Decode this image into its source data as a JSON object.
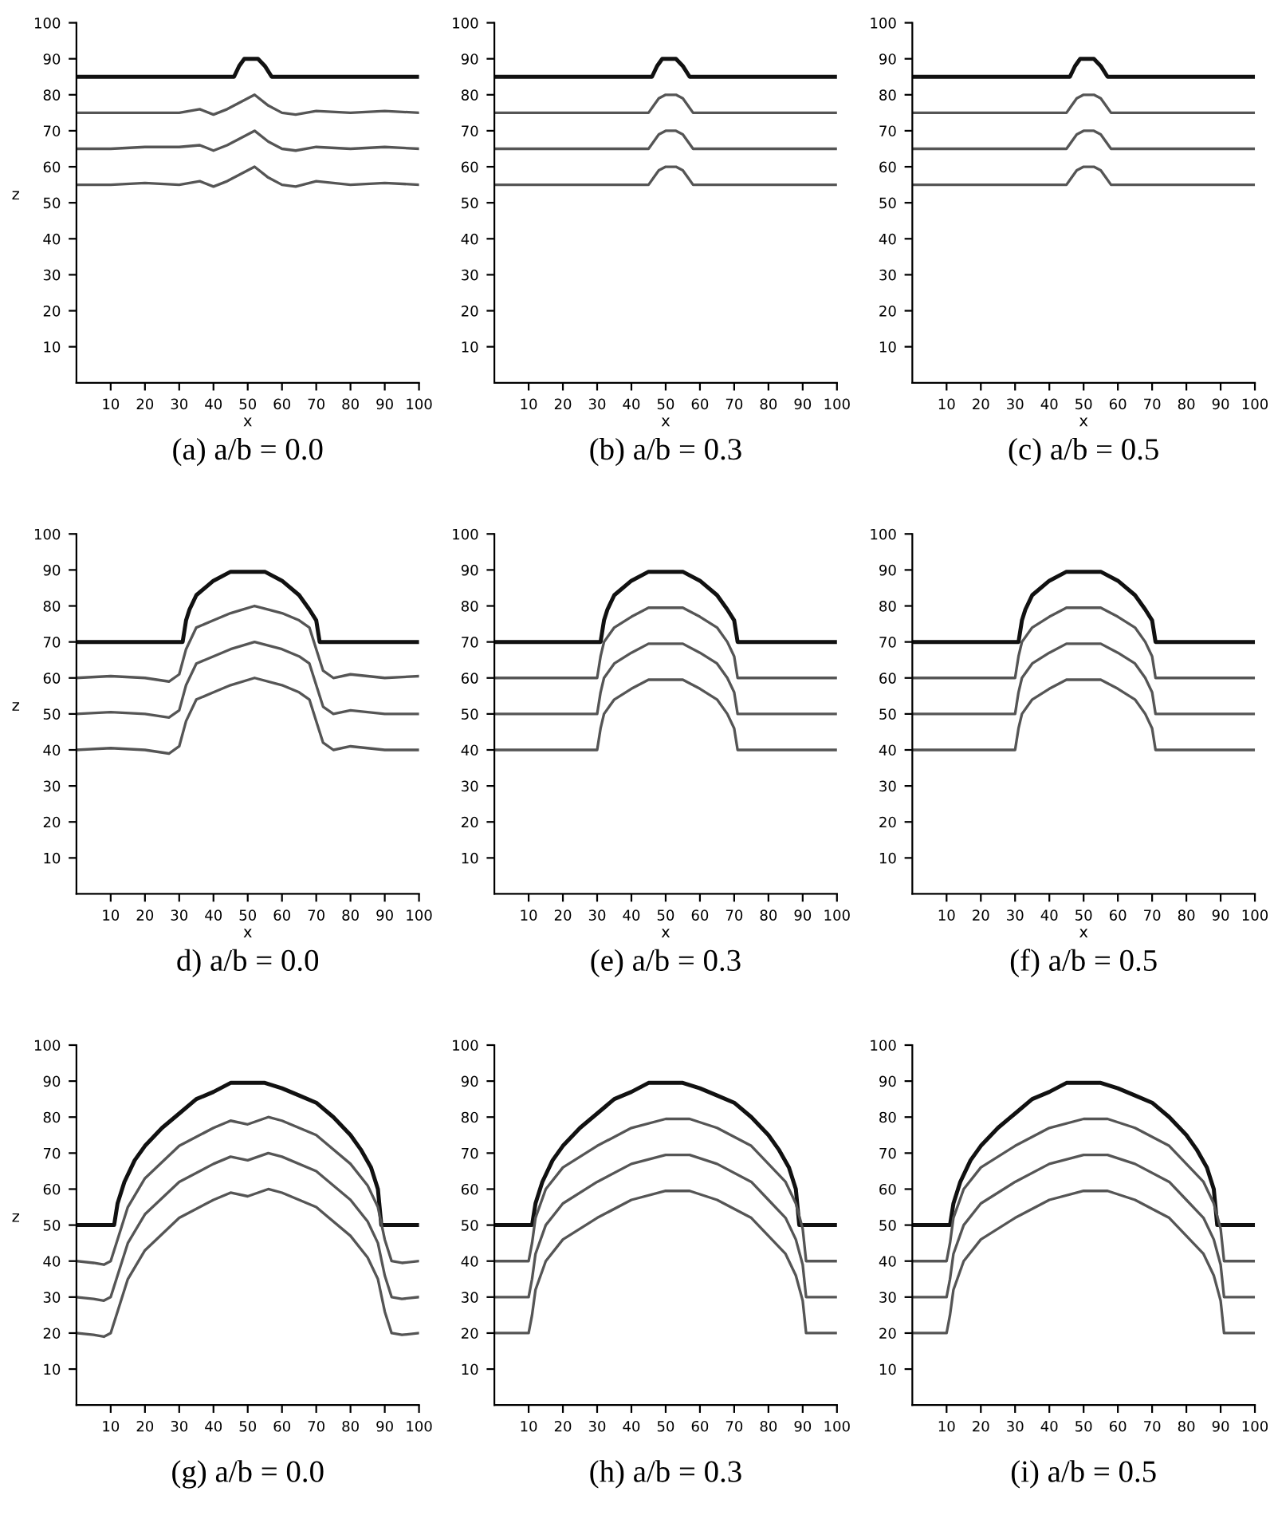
{
  "chart_data": [
    {
      "type": "line",
      "title": "(a) a/b = 0.0",
      "xlabel": "x",
      "ylabel": "z",
      "xlim": [
        0,
        100
      ],
      "ylim": [
        0,
        100
      ],
      "xticks": [
        10,
        20,
        30,
        40,
        50,
        60,
        70,
        80,
        90,
        100
      ],
      "yticks": [
        10,
        20,
        30,
        40,
        50,
        60,
        70,
        80,
        90,
        100
      ],
      "grid": false,
      "legend": false,
      "series": [
        {
          "color": "#111111",
          "x": [
            0,
            46,
            47.5,
            49,
            53,
            55,
            57,
            100
          ],
          "values": [
            85,
            85,
            88,
            90,
            90,
            88,
            85,
            85
          ]
        },
        {
          "color": "#555555",
          "x": [
            0,
            10,
            20,
            30,
            36,
            40,
            44,
            50,
            52,
            56,
            60,
            64,
            70,
            80,
            90,
            100
          ],
          "values": [
            75,
            75,
            75,
            75,
            76,
            74.5,
            76,
            79,
            80,
            77,
            75,
            74.5,
            75.5,
            75,
            75.5,
            75
          ]
        },
        {
          "color": "#555555",
          "x": [
            0,
            10,
            20,
            30,
            36,
            40,
            44,
            50,
            52,
            56,
            60,
            64,
            70,
            80,
            90,
            100
          ],
          "values": [
            65,
            65,
            65.5,
            65.5,
            66,
            64.5,
            66,
            69,
            70,
            67,
            65,
            64.5,
            65.5,
            65,
            65.5,
            65
          ]
        },
        {
          "color": "#555555",
          "x": [
            0,
            10,
            20,
            30,
            36,
            40,
            44,
            50,
            52,
            56,
            60,
            64,
            70,
            80,
            90,
            100
          ],
          "values": [
            55,
            55,
            55.5,
            55,
            56,
            54.5,
            56,
            59,
            60,
            57,
            55,
            54.5,
            56,
            55,
            55.5,
            55
          ]
        }
      ]
    },
    {
      "type": "line",
      "title": "(b) a/b = 0.3",
      "xlabel": "x",
      "xlim": [
        0,
        100
      ],
      "ylim": [
        0,
        100
      ],
      "xticks": [
        10,
        20,
        30,
        40,
        50,
        60,
        70,
        80,
        90,
        100
      ],
      "yticks": [
        10,
        20,
        30,
        40,
        50,
        60,
        70,
        80,
        90,
        100
      ],
      "grid": false,
      "legend": false,
      "series": [
        {
          "color": "#111111",
          "x": [
            0,
            46,
            47.5,
            49,
            53,
            55,
            57,
            100
          ],
          "values": [
            85,
            85,
            88,
            90,
            90,
            88,
            85,
            85
          ]
        },
        {
          "color": "#555555",
          "x": [
            0,
            45,
            46.5,
            48,
            50,
            53,
            55,
            56.5,
            58,
            100
          ],
          "values": [
            75,
            75,
            77,
            79,
            80,
            80,
            79,
            77,
            75,
            75
          ]
        },
        {
          "color": "#555555",
          "x": [
            0,
            45,
            46.5,
            48,
            50,
            53,
            55,
            56.5,
            58,
            100
          ],
          "values": [
            65,
            65,
            67,
            69,
            70,
            70,
            69,
            67,
            65,
            65
          ]
        },
        {
          "color": "#555555",
          "x": [
            0,
            45,
            46.5,
            48,
            50,
            53,
            55,
            56.5,
            58,
            100
          ],
          "values": [
            55,
            55,
            57,
            59,
            60,
            60,
            59,
            57,
            55,
            55
          ]
        }
      ]
    },
    {
      "type": "line",
      "title": "(c) a/b = 0.5",
      "xlabel": "x",
      "xlim": [
        0,
        100
      ],
      "ylim": [
        0,
        100
      ],
      "xticks": [
        10,
        20,
        30,
        40,
        50,
        60,
        70,
        80,
        90,
        100
      ],
      "yticks": [
        10,
        20,
        30,
        40,
        50,
        60,
        70,
        80,
        90,
        100
      ],
      "grid": false,
      "legend": false,
      "series": [
        {
          "color": "#111111",
          "x": [
            0,
            46,
            47.5,
            49,
            53,
            55,
            57,
            100
          ],
          "values": [
            85,
            85,
            88,
            90,
            90,
            88,
            85,
            85
          ]
        },
        {
          "color": "#555555",
          "x": [
            0,
            45,
            46.5,
            48,
            50,
            53,
            55,
            56.5,
            58,
            100
          ],
          "values": [
            75,
            75,
            77,
            79,
            80,
            80,
            79,
            77,
            75,
            75
          ]
        },
        {
          "color": "#555555",
          "x": [
            0,
            45,
            46.5,
            48,
            50,
            53,
            55,
            56.5,
            58,
            100
          ],
          "values": [
            65,
            65,
            67,
            69,
            70,
            70,
            69,
            67,
            65,
            65
          ]
        },
        {
          "color": "#555555",
          "x": [
            0,
            45,
            46.5,
            48,
            50,
            53,
            55,
            56.5,
            58,
            100
          ],
          "values": [
            55,
            55,
            57,
            59,
            60,
            60,
            59,
            57,
            55,
            55
          ]
        }
      ]
    },
    {
      "type": "line",
      "title": "d) a/b = 0.0",
      "xlabel": "x",
      "ylabel": "z",
      "xlim": [
        0,
        100
      ],
      "ylim": [
        0,
        100
      ],
      "xticks": [
        10,
        20,
        30,
        40,
        50,
        60,
        70,
        80,
        90,
        100
      ],
      "yticks": [
        10,
        20,
        30,
        40,
        50,
        60,
        70,
        80,
        90,
        100
      ],
      "grid": false,
      "legend": false,
      "series": [
        {
          "color": "#111111",
          "x": [
            0,
            31,
            32,
            33,
            35,
            40,
            45,
            55,
            60,
            65,
            68,
            70,
            71,
            100
          ],
          "values": [
            70,
            70,
            76,
            79,
            83,
            87,
            89.5,
            89.5,
            87,
            83,
            79,
            76,
            70,
            70
          ]
        },
        {
          "color": "#555555",
          "x": [
            0,
            10,
            20,
            27,
            30,
            32,
            35,
            40,
            45,
            52,
            60,
            65,
            68,
            70,
            72,
            75,
            80,
            90,
            100
          ],
          "values": [
            60,
            60.5,
            60,
            59,
            61,
            68,
            74,
            76,
            78,
            80,
            78,
            76,
            74,
            68,
            62,
            60,
            61,
            60,
            60.5
          ]
        },
        {
          "color": "#555555",
          "x": [
            0,
            10,
            20,
            27,
            30,
            32,
            35,
            40,
            45,
            52,
            60,
            65,
            68,
            70,
            72,
            75,
            80,
            90,
            100
          ],
          "values": [
            50,
            50.5,
            50,
            49,
            51,
            58,
            64,
            66,
            68,
            70,
            68,
            66,
            64,
            58,
            52,
            50,
            51,
            50,
            50
          ]
        },
        {
          "color": "#555555",
          "x": [
            0,
            10,
            20,
            27,
            30,
            32,
            35,
            40,
            45,
            52,
            60,
            65,
            68,
            70,
            72,
            75,
            80,
            90,
            100
          ],
          "values": [
            40,
            40.5,
            40,
            39,
            41,
            48,
            54,
            56,
            58,
            60,
            58,
            56,
            54,
            48,
            42,
            40,
            41,
            40,
            40
          ]
        }
      ]
    },
    {
      "type": "line",
      "title": "(e) a/b = 0.3",
      "xlabel": "x",
      "xlim": [
        0,
        100
      ],
      "ylim": [
        0,
        100
      ],
      "xticks": [
        10,
        20,
        30,
        40,
        50,
        60,
        70,
        80,
        90,
        100
      ],
      "yticks": [
        10,
        20,
        30,
        40,
        50,
        60,
        70,
        80,
        90,
        100
      ],
      "grid": false,
      "legend": false,
      "series": [
        {
          "color": "#111111",
          "x": [
            0,
            31,
            32,
            33,
            35,
            40,
            45,
            55,
            60,
            65,
            68,
            70,
            71,
            100
          ],
          "values": [
            70,
            70,
            76,
            79,
            83,
            87,
            89.5,
            89.5,
            87,
            83,
            79,
            76,
            70,
            70
          ]
        },
        {
          "color": "#555555",
          "x": [
            0,
            30,
            31,
            32,
            35,
            40,
            45,
            55,
            60,
            65,
            68,
            70,
            71,
            100
          ],
          "values": [
            60,
            60,
            66,
            70,
            74,
            77,
            79.5,
            79.5,
            77,
            74,
            70,
            66,
            60,
            60
          ]
        },
        {
          "color": "#555555",
          "x": [
            0,
            30,
            31,
            32,
            35,
            40,
            45,
            55,
            60,
            65,
            68,
            70,
            71,
            100
          ],
          "values": [
            50,
            50,
            56,
            60,
            64,
            67,
            69.5,
            69.5,
            67,
            64,
            60,
            56,
            50,
            50
          ]
        },
        {
          "color": "#555555",
          "x": [
            0,
            30,
            31,
            32,
            35,
            40,
            45,
            55,
            60,
            65,
            68,
            70,
            71,
            100
          ],
          "values": [
            40,
            40,
            46,
            50,
            54,
            57,
            59.5,
            59.5,
            57,
            54,
            50,
            46,
            40,
            40
          ]
        }
      ]
    },
    {
      "type": "line",
      "title": "(f) a/b = 0.5",
      "xlabel": "x",
      "xlim": [
        0,
        100
      ],
      "ylim": [
        0,
        100
      ],
      "xticks": [
        10,
        20,
        30,
        40,
        50,
        60,
        70,
        80,
        90,
        100
      ],
      "yticks": [
        10,
        20,
        30,
        40,
        50,
        60,
        70,
        80,
        90,
        100
      ],
      "grid": false,
      "legend": false,
      "series": [
        {
          "color": "#111111",
          "x": [
            0,
            31,
            32,
            33,
            35,
            40,
            45,
            55,
            60,
            65,
            68,
            70,
            71,
            100
          ],
          "values": [
            70,
            70,
            76,
            79,
            83,
            87,
            89.5,
            89.5,
            87,
            83,
            79,
            76,
            70,
            70
          ]
        },
        {
          "color": "#555555",
          "x": [
            0,
            30,
            31,
            32,
            35,
            40,
            45,
            55,
            60,
            65,
            68,
            70,
            71,
            100
          ],
          "values": [
            60,
            60,
            66,
            70,
            74,
            77,
            79.5,
            79.5,
            77,
            74,
            70,
            66,
            60,
            60
          ]
        },
        {
          "color": "#555555",
          "x": [
            0,
            30,
            31,
            32,
            35,
            40,
            45,
            55,
            60,
            65,
            68,
            70,
            71,
            100
          ],
          "values": [
            50,
            50,
            56,
            60,
            64,
            67,
            69.5,
            69.5,
            67,
            64,
            60,
            56,
            50,
            50
          ]
        },
        {
          "color": "#555555",
          "x": [
            0,
            30,
            31,
            32,
            35,
            40,
            45,
            55,
            60,
            65,
            68,
            70,
            71,
            100
          ],
          "values": [
            40,
            40,
            46,
            50,
            54,
            57,
            59.5,
            59.5,
            57,
            54,
            50,
            46,
            40,
            40
          ]
        }
      ]
    },
    {
      "type": "line",
      "title": "(g) a/b = 0.0",
      "ylabel": "z",
      "xlim": [
        0,
        100
      ],
      "ylim": [
        0,
        100
      ],
      "xticks": [
        10,
        20,
        30,
        40,
        50,
        60,
        70,
        80,
        90,
        100
      ],
      "yticks": [
        10,
        20,
        30,
        40,
        50,
        60,
        70,
        80,
        90,
        100
      ],
      "grid": false,
      "legend": false,
      "series": [
        {
          "color": "#111111",
          "x": [
            0,
            11,
            12,
            14,
            17,
            20,
            25,
            30,
            35,
            40,
            45,
            55,
            60,
            65,
            70,
            75,
            80,
            83,
            86,
            88,
            89,
            100
          ],
          "values": [
            50,
            50,
            56,
            62,
            68,
            72,
            77,
            81,
            85,
            87,
            89.5,
            89.5,
            88,
            86,
            84,
            80,
            75,
            71,
            66,
            60,
            50,
            50
          ]
        },
        {
          "color": "#555555",
          "x": [
            0,
            5,
            8,
            10,
            12,
            15,
            20,
            30,
            40,
            45,
            50,
            56,
            60,
            70,
            80,
            85,
            88,
            90,
            92,
            95,
            100
          ],
          "values": [
            40,
            39.5,
            39,
            40,
            46,
            55,
            63,
            72,
            77,
            79,
            78,
            80,
            79,
            75,
            67,
            61,
            55,
            46,
            40,
            39.5,
            40
          ]
        },
        {
          "color": "#555555",
          "x": [
            0,
            5,
            8,
            10,
            12,
            15,
            20,
            30,
            40,
            45,
            50,
            56,
            60,
            70,
            80,
            85,
            88,
            90,
            92,
            95,
            100
          ],
          "values": [
            30,
            29.5,
            29,
            30,
            36,
            45,
            53,
            62,
            67,
            69,
            68,
            70,
            69,
            65,
            57,
            51,
            45,
            36,
            30,
            29.5,
            30
          ]
        },
        {
          "color": "#555555",
          "x": [
            0,
            5,
            8,
            10,
            12,
            15,
            20,
            30,
            40,
            45,
            50,
            56,
            60,
            70,
            80,
            85,
            88,
            90,
            92,
            95,
            100
          ],
          "values": [
            20,
            19.5,
            19,
            20,
            26,
            35,
            43,
            52,
            57,
            59,
            58,
            60,
            59,
            55,
            47,
            41,
            35,
            26,
            20,
            19.5,
            20
          ]
        }
      ]
    },
    {
      "type": "line",
      "title": "(h) a/b = 0.3",
      "xlim": [
        0,
        100
      ],
      "ylim": [
        0,
        100
      ],
      "xticks": [
        10,
        20,
        30,
        40,
        50,
        60,
        70,
        80,
        90,
        100
      ],
      "yticks": [
        10,
        20,
        30,
        40,
        50,
        60,
        70,
        80,
        90,
        100
      ],
      "grid": false,
      "legend": false,
      "series": [
        {
          "color": "#111111",
          "x": [
            0,
            11,
            12,
            14,
            17,
            20,
            25,
            30,
            35,
            40,
            45,
            55,
            60,
            65,
            70,
            75,
            80,
            83,
            86,
            88,
            89,
            100
          ],
          "values": [
            50,
            50,
            56,
            62,
            68,
            72,
            77,
            81,
            85,
            87,
            89.5,
            89.5,
            88,
            86,
            84,
            80,
            75,
            71,
            66,
            60,
            50,
            50
          ]
        },
        {
          "color": "#555555",
          "x": [
            0,
            10,
            11,
            12,
            15,
            20,
            30,
            40,
            50,
            57,
            65,
            75,
            80,
            85,
            88,
            90,
            91,
            100
          ],
          "values": [
            40,
            40,
            45,
            52,
            60,
            66,
            72,
            77,
            79.5,
            79.5,
            77,
            72,
            67,
            62,
            56,
            49,
            40,
            40
          ]
        },
        {
          "color": "#555555",
          "x": [
            0,
            10,
            11,
            12,
            15,
            20,
            30,
            40,
            50,
            57,
            65,
            75,
            80,
            85,
            88,
            90,
            91,
            100
          ],
          "values": [
            30,
            30,
            35,
            42,
            50,
            56,
            62,
            67,
            69.5,
            69.5,
            67,
            62,
            57,
            52,
            46,
            39,
            30,
            30
          ]
        },
        {
          "color": "#555555",
          "x": [
            0,
            10,
            11,
            12,
            15,
            20,
            30,
            40,
            50,
            57,
            65,
            75,
            80,
            85,
            88,
            90,
            91,
            100
          ],
          "values": [
            20,
            20,
            25,
            32,
            40,
            46,
            52,
            57,
            59.5,
            59.5,
            57,
            52,
            47,
            42,
            36,
            29,
            20,
            20
          ]
        }
      ]
    },
    {
      "type": "line",
      "title": "(i) a/b = 0.5",
      "xlim": [
        0,
        100
      ],
      "ylim": [
        0,
        100
      ],
      "xticks": [
        10,
        20,
        30,
        40,
        50,
        60,
        70,
        80,
        90,
        100
      ],
      "yticks": [
        10,
        20,
        30,
        40,
        50,
        60,
        70,
        80,
        90,
        100
      ],
      "grid": false,
      "legend": false,
      "series": [
        {
          "color": "#111111",
          "x": [
            0,
            11,
            12,
            14,
            17,
            20,
            25,
            30,
            35,
            40,
            45,
            55,
            60,
            65,
            70,
            75,
            80,
            83,
            86,
            88,
            89,
            100
          ],
          "values": [
            50,
            50,
            56,
            62,
            68,
            72,
            77,
            81,
            85,
            87,
            89.5,
            89.5,
            88,
            86,
            84,
            80,
            75,
            71,
            66,
            60,
            50,
            50
          ]
        },
        {
          "color": "#555555",
          "x": [
            0,
            10,
            11,
            12,
            15,
            20,
            30,
            40,
            50,
            57,
            65,
            75,
            80,
            85,
            88,
            90,
            91,
            100
          ],
          "values": [
            40,
            40,
            45,
            52,
            60,
            66,
            72,
            77,
            79.5,
            79.5,
            77,
            72,
            67,
            62,
            56,
            49,
            40,
            40
          ]
        },
        {
          "color": "#555555",
          "x": [
            0,
            10,
            11,
            12,
            15,
            20,
            30,
            40,
            50,
            57,
            65,
            75,
            80,
            85,
            88,
            90,
            91,
            100
          ],
          "values": [
            30,
            30,
            35,
            42,
            50,
            56,
            62,
            67,
            69.5,
            69.5,
            67,
            62,
            57,
            52,
            46,
            39,
            30,
            30
          ]
        },
        {
          "color": "#555555",
          "x": [
            0,
            10,
            11,
            12,
            15,
            20,
            30,
            40,
            50,
            57,
            65,
            75,
            80,
            85,
            88,
            90,
            91,
            100
          ],
          "values": [
            20,
            20,
            25,
            32,
            40,
            46,
            52,
            57,
            59.5,
            59.5,
            57,
            52,
            47,
            42,
            36,
            29,
            20,
            20
          ]
        }
      ]
    }
  ]
}
